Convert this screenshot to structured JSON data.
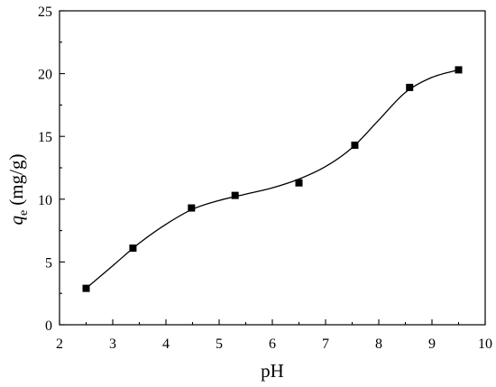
{
  "chart_data": {
    "type": "scatter",
    "xlabel": "pH",
    "ylabel_main": "q",
    "ylabel_sub": "e",
    "ylabel_unit": "(mg/g)",
    "xlim": [
      2,
      10
    ],
    "ylim": [
      0,
      25
    ],
    "x_ticks": [
      "2",
      "3",
      "4",
      "5",
      "6",
      "7",
      "8",
      "9",
      "10"
    ],
    "y_ticks": [
      "0",
      "5",
      "10",
      "15",
      "20",
      "25"
    ],
    "grid": false,
    "legend": "none",
    "marker": "square",
    "color": "#000000",
    "series": [
      {
        "points": [
          {
            "x": 2.5,
            "y": 2.9
          },
          {
            "x": 3.38,
            "y": 6.1
          },
          {
            "x": 4.48,
            "y": 9.3
          },
          {
            "x": 5.3,
            "y": 10.3
          },
          {
            "x": 6.5,
            "y": 11.3
          },
          {
            "x": 7.55,
            "y": 14.3
          },
          {
            "x": 8.58,
            "y": 18.9
          },
          {
            "x": 9.5,
            "y": 20.3
          }
        ]
      }
    ],
    "fit_curve": {
      "x": [
        2.5,
        3.0,
        3.5,
        4.0,
        4.5,
        5.0,
        5.5,
        6.0,
        6.5,
        7.0,
        7.5,
        8.0,
        8.5,
        9.0,
        9.5
      ],
      "y": [
        2.9,
        4.7,
        6.5,
        8.0,
        9.2,
        9.9,
        10.4,
        10.9,
        11.6,
        12.6,
        14.1,
        16.3,
        18.5,
        19.7,
        20.3
      ]
    }
  }
}
